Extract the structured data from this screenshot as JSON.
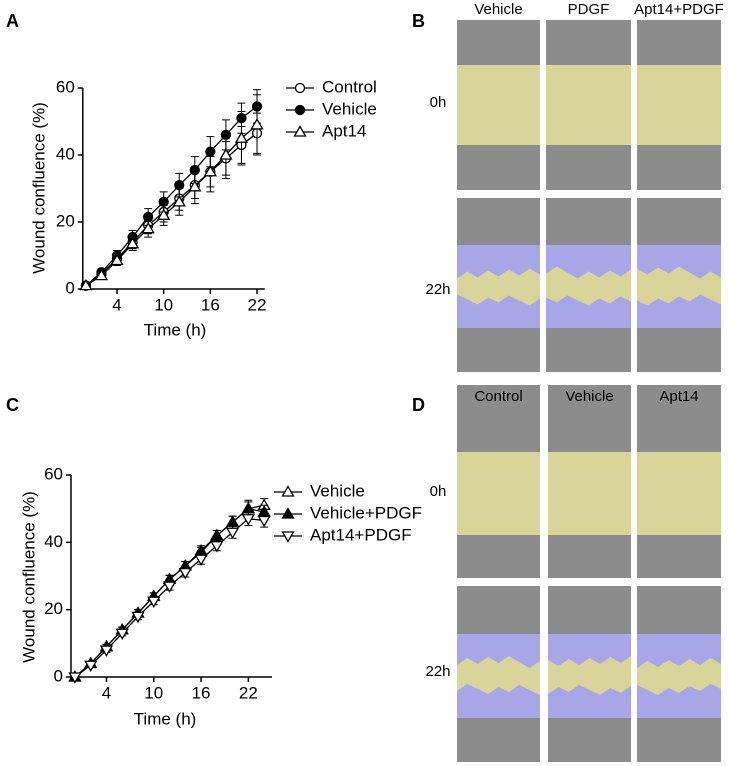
{
  "chart_data": [
    {
      "type": "line",
      "panel": "A",
      "ylabel": "Wound confluence (%)",
      "xlabel": "Time (h)",
      "x": [
        0,
        2,
        4,
        6,
        8,
        10,
        12,
        14,
        16,
        18,
        20,
        22
      ],
      "xlim": [
        -0.4,
        23
      ],
      "xticks": [
        4,
        10,
        16,
        22
      ],
      "ylim": [
        0,
        60
      ],
      "yticks": [
        0,
        20,
        40,
        60
      ],
      "series": [
        {
          "name": "Control",
          "color": "#000000",
          "marker": "circle",
          "filled": false,
          "values": [
            1,
            4.5,
            9,
            14,
            19,
            23,
            27,
            31,
            35,
            39,
            43,
            46.5
          ],
          "errors": [
            0.5,
            1,
            1.5,
            2,
            2.5,
            3,
            3.5,
            4,
            4.5,
            5,
            5.5,
            6
          ]
        },
        {
          "name": "Vehicle",
          "color": "#000000",
          "marker": "circle",
          "filled": true,
          "values": [
            1,
            5,
            10,
            15.5,
            21.5,
            26,
            31,
            35.5,
            41,
            46,
            51,
            54.5
          ],
          "errors": [
            0.5,
            1,
            1.5,
            2,
            2.5,
            3,
            3.5,
            4,
            4.5,
            4.5,
            4.5,
            5
          ]
        },
        {
          "name": "Apt14",
          "color": "#000000",
          "marker": "triangle-up",
          "filled": false,
          "values": [
            1,
            4,
            8.5,
            13.5,
            18,
            22,
            26,
            30.5,
            35,
            40,
            45,
            49
          ],
          "errors": [
            0.5,
            1,
            1.5,
            2,
            2.5,
            3,
            4,
            5,
            6,
            7,
            8,
            9
          ]
        }
      ]
    },
    {
      "type": "line",
      "panel": "C",
      "ylabel": "Wound confluence (%)",
      "xlabel": "Time (h)",
      "x": [
        0,
        2,
        4,
        6,
        8,
        10,
        12,
        14,
        16,
        18,
        20,
        22,
        24
      ],
      "xlim": [
        -0.5,
        25
      ],
      "xticks": [
        4,
        10,
        16,
        22
      ],
      "ylim": [
        0,
        60
      ],
      "yticks": [
        0,
        20,
        40,
        60
      ],
      "series": [
        {
          "name": "Vehicle",
          "color": "#000000",
          "marker": "triangle-up",
          "filled": false,
          "values": [
            0,
            4,
            9,
            14,
            19,
            24,
            29,
            33,
            37,
            42,
            46,
            50,
            51
          ],
          "errors": [
            0.3,
            0.5,
            0.7,
            0.8,
            1,
            1,
            1.2,
            1.3,
            1.5,
            1.5,
            1.8,
            2,
            2
          ]
        },
        {
          "name": "Vehicle+PDGF",
          "color": "#000000",
          "marker": "triangle-up",
          "filled": true,
          "values": [
            0,
            4,
            9,
            14,
            19,
            24,
            29,
            33,
            37.5,
            42,
            46,
            50,
            49
          ],
          "errors": [
            0.3,
            0.5,
            0.7,
            0.8,
            1,
            1,
            1.2,
            1.3,
            1.5,
            1.5,
            1.8,
            2.5,
            2
          ]
        },
        {
          "name": "Apt14+PDGF",
          "color": "#000000",
          "marker": "triangle-down",
          "filled": false,
          "values": [
            0,
            3.5,
            8,
            13,
            18,
            22.5,
            27,
            31,
            35,
            39,
            43,
            47,
            46.5
          ],
          "errors": [
            0.3,
            0.5,
            0.7,
            0.8,
            1,
            1,
            1.2,
            1.3,
            1.5,
            1.5,
            1.8,
            2,
            2
          ]
        }
      ]
    }
  ],
  "image_panels": [
    {
      "panel": "B",
      "columns": [
        "Vehicle",
        "PDGF",
        "Apt14+PDGF"
      ],
      "rows": [
        "0h",
        "22h"
      ]
    },
    {
      "panel": "D",
      "columns": [
        "Control",
        "Vehicle",
        "Apt14"
      ],
      "rows": [
        "0h",
        "22h"
      ]
    }
  ]
}
